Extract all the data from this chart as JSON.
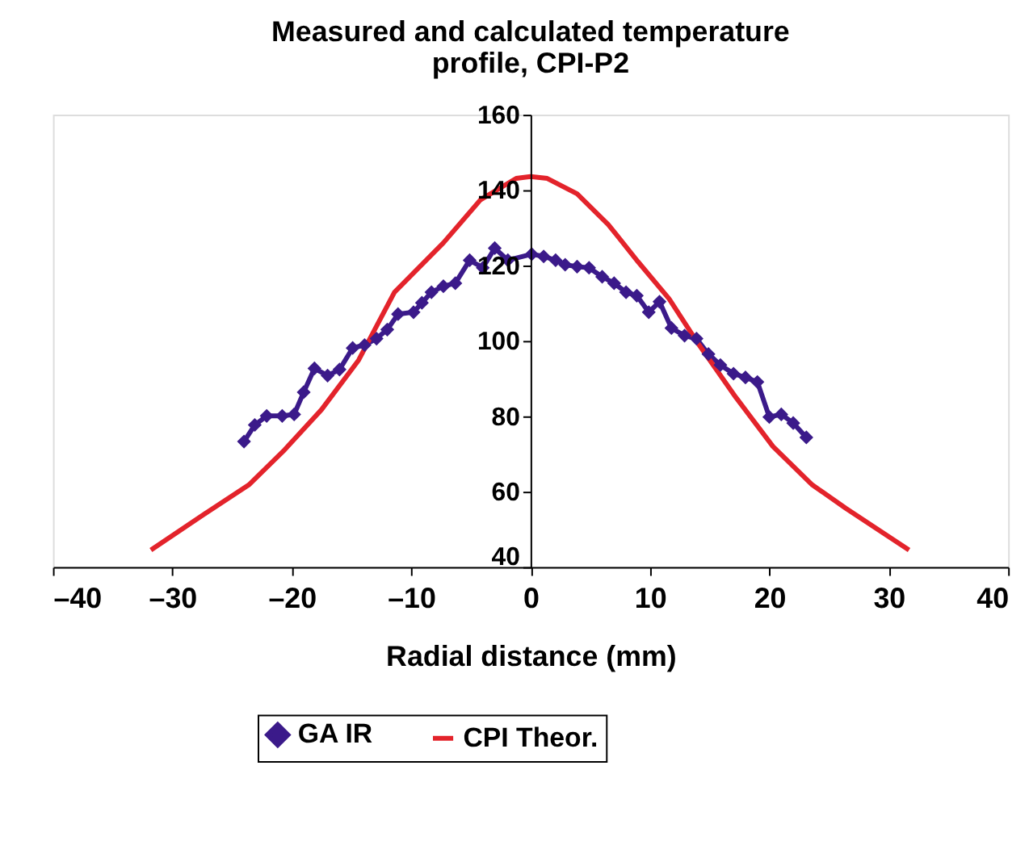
{
  "chart_data": {
    "type": "line",
    "title": [
      "Measured and calculated temperature",
      "profile, CPI-P2"
    ],
    "xlabel": "Radial distance (mm)",
    "xlim": [
      -40,
      40
    ],
    "xticks": [
      {
        "value": -40,
        "label": "–40"
      },
      {
        "value": -30,
        "label": "–30"
      },
      {
        "value": -20,
        "label": "–20"
      },
      {
        "value": -10,
        "label": "–10"
      },
      0,
      10,
      20,
      30,
      40
    ],
    "ylim": [
      40,
      160
    ],
    "yticks": [
      40,
      60,
      80,
      100,
      120,
      140,
      160
    ],
    "grid": false,
    "legend": "bottom",
    "line_style": "solid",
    "series": [
      {
        "name": "GA IR",
        "color": "#3b1a8a",
        "marker": "diamond",
        "x": [
          -24,
          -23.1,
          -22.1,
          -20.8,
          -19.8,
          -19,
          -18.1,
          -17,
          -16,
          -14.9,
          -13.9,
          -12.9,
          -12,
          -11.1,
          -9.8,
          -9.1,
          -8.3,
          -7.3,
          -6.3,
          -5.1,
          -4,
          -3,
          -1.9,
          0.1,
          1.1,
          2.1,
          2.9,
          3.9,
          4.9,
          6,
          7,
          8,
          8.9,
          9.9,
          10.8,
          11.8,
          12.9,
          13.9,
          14.9,
          15.9,
          17,
          18,
          19,
          20,
          21,
          22,
          23.1
        ],
        "values": [
          73.3,
          77.7,
          80.1,
          80.1,
          80.5,
          86.4,
          92.7,
          90.8,
          92.4,
          98.1,
          98.9,
          100.6,
          103,
          107.1,
          107.6,
          110.1,
          112.9,
          114.5,
          115.3,
          121.4,
          119.4,
          124.6,
          121.4,
          123,
          122.4,
          121.4,
          120.2,
          119.7,
          119.4,
          117,
          115.3,
          112.9,
          112,
          107.6,
          110.4,
          103.4,
          101.4,
          100.6,
          96.5,
          93.6,
          91.3,
          90.3,
          89.1,
          79.8,
          80.5,
          78.2,
          74.4
        ]
      },
      {
        "name": "CPI Theor.",
        "color": "#e3232b",
        "marker": "none",
        "x": [
          -31.8,
          -27.2,
          -23.6,
          -20.6,
          -17.5,
          -14.4,
          -11.4,
          -7.3,
          -4.2,
          -1.2,
          0,
          1.4,
          3.9,
          6.5,
          9,
          11.6,
          14.1,
          17.2,
          20.3,
          23.6,
          26.4,
          31.7
        ],
        "values": [
          44.5,
          54.3,
          61.8,
          71.1,
          81.8,
          94.9,
          112.9,
          126,
          137.4,
          143.1,
          143.6,
          143.1,
          139,
          130.9,
          121,
          111.2,
          99,
          85,
          72,
          61.8,
          55.6,
          44.5
        ]
      }
    ]
  }
}
